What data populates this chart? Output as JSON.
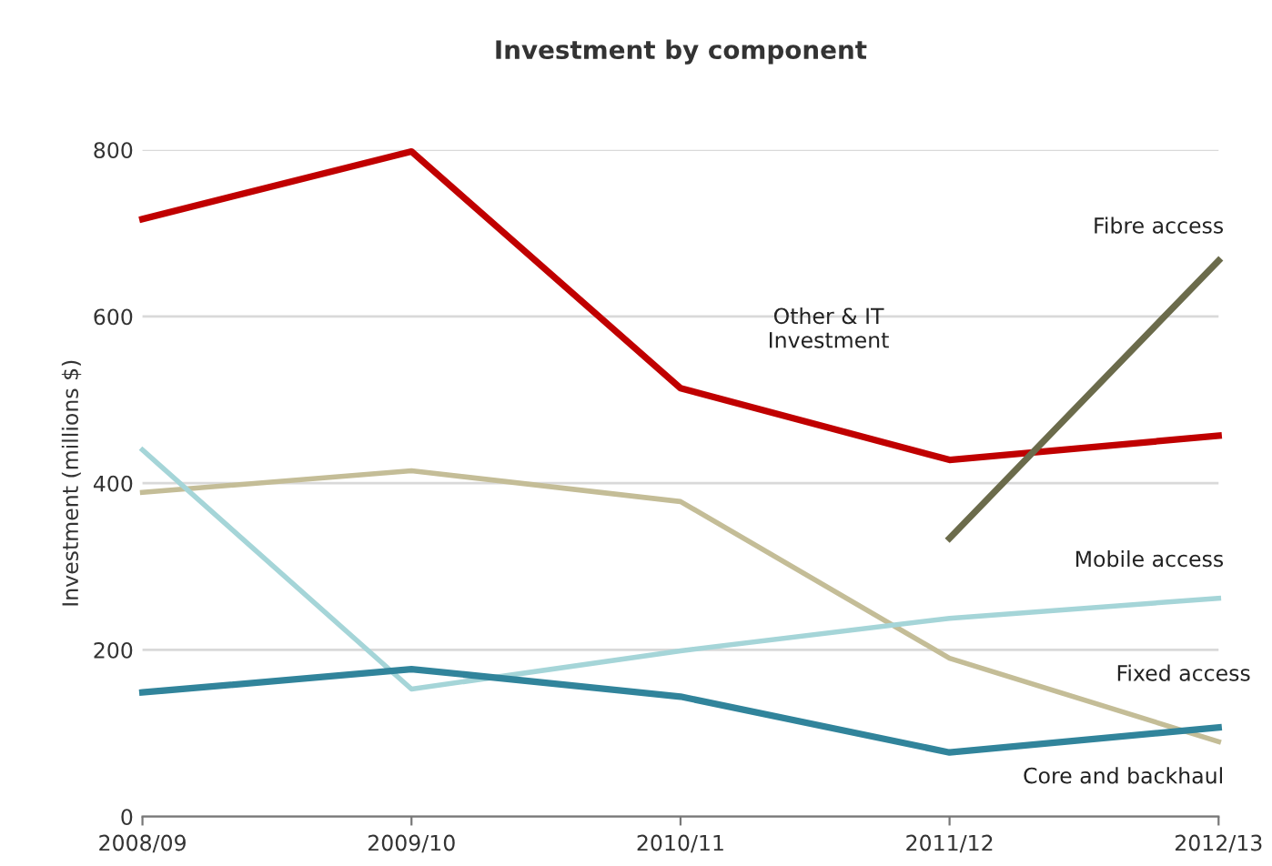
{
  "chart_data": {
    "type": "line",
    "title": "Investment by component",
    "ylabel": "Investment (millions $)",
    "categories": [
      "2008/09",
      "2009/10",
      "2010/11",
      "2011/12",
      "2012/13"
    ],
    "series": [
      {
        "name": "Other & IT\nInvestment",
        "color": "#c00000",
        "values": [
          717,
          798,
          514,
          428,
          457
        ]
      },
      {
        "name": "Fixed access",
        "color": "#c4bd97",
        "values": [
          389,
          415,
          378,
          190,
          90
        ]
      },
      {
        "name": "Mobile access",
        "color": "#a5d5d8",
        "values": [
          440,
          153,
          199,
          238,
          262
        ]
      },
      {
        "name": "Core and backhaul",
        "color": "#31849b",
        "values": [
          149,
          177,
          144,
          77,
          107
        ]
      },
      {
        "name": "Fibre access",
        "color": "#6b6b4b",
        "values": [
          null,
          null,
          null,
          334,
          667
        ]
      }
    ],
    "ylim": [
      0,
      800
    ],
    "yticks": [
      0,
      200,
      400,
      600,
      800
    ],
    "grid": "y",
    "legend": false,
    "marker": "none",
    "line_style": "solid"
  }
}
